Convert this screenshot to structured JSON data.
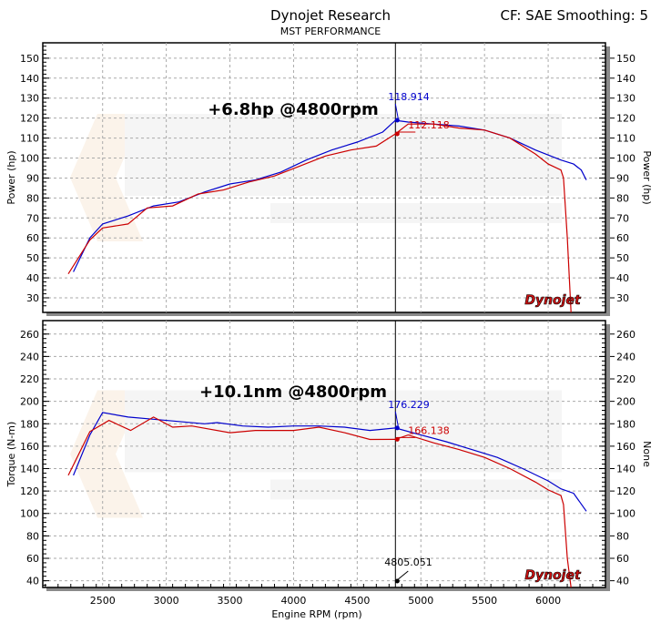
{
  "header": {
    "title": "Dynojet Research",
    "subtitle": "MST PERFORMANCE",
    "settings": "CF: SAE Smoothing: 5"
  },
  "watermark": "MST PERFORMANCE",
  "logo": "Dynojet",
  "colors": {
    "run1": "#0000cc",
    "run2": "#cc0000",
    "cursor": "#000000"
  },
  "chart_data": [
    {
      "type": "line",
      "ylabel": "Power (hp)",
      "ylabel_right": "Power (hp)",
      "xlim": [
        2030,
        6450
      ],
      "ylim": [
        22.7,
        157.7
      ],
      "yticks": [
        30,
        40,
        50,
        60,
        70,
        80,
        90,
        100,
        110,
        120,
        130,
        140,
        150
      ],
      "grid": true,
      "annotation": "+6.8hp @4800rpm",
      "cursor_rpm": 4800,
      "series": [
        {
          "color": "#0000cc",
          "cursor_label": "118.914",
          "cursor_value": 118.914,
          "x": [
            2270,
            2400,
            2500,
            2700,
            2900,
            3100,
            3300,
            3500,
            3700,
            3900,
            4100,
            4300,
            4500,
            4700,
            4800,
            4900,
            5100,
            5300,
            5500,
            5700,
            5900,
            6100,
            6200,
            6260,
            6300
          ],
          "y": [
            43,
            60,
            67,
            71,
            76,
            78,
            83,
            87,
            89,
            93,
            99,
            104,
            108,
            113,
            118.9,
            118,
            117,
            116,
            114,
            110,
            104,
            99,
            97,
            94,
            89
          ]
        },
        {
          "color": "#cc0000",
          "cursor_label": "112.118",
          "cursor_value": 112.118,
          "x": [
            2230,
            2400,
            2500,
            2700,
            2850,
            3050,
            3250,
            3450,
            3650,
            3850,
            4050,
            4250,
            4450,
            4650,
            4800,
            4900,
            5100,
            5300,
            5500,
            5700,
            5900,
            6000,
            6100,
            6120,
            6150,
            6180
          ],
          "y": [
            42,
            59,
            65,
            67,
            75,
            76,
            82,
            84,
            88,
            91,
            96,
            101,
            104,
            106,
            112.1,
            117,
            117,
            115,
            114,
            110,
            102,
            97,
            94,
            90,
            60,
            22.7
          ]
        }
      ]
    },
    {
      "type": "line",
      "xlabel": "Engine RPM (rpm)",
      "ylabel": "Torque (N-m)",
      "ylabel_right": "None",
      "xlim": [
        2030,
        6450
      ],
      "ylim": [
        34,
        272
      ],
      "xticks": [
        2500,
        3000,
        3500,
        4000,
        4500,
        5000,
        5500,
        6000
      ],
      "yticks": [
        40,
        60,
        80,
        100,
        120,
        140,
        160,
        180,
        200,
        220,
        240,
        260
      ],
      "grid": true,
      "annotation": "+10.1nm @4800rpm",
      "cursor_rpm": 4800,
      "cursor_x_label": "4805.051",
      "series": [
        {
          "color": "#0000cc",
          "cursor_label": "176.229",
          "cursor_value": 176.229,
          "x": [
            2270,
            2400,
            2500,
            2700,
            2900,
            3100,
            3300,
            3400,
            3600,
            3800,
            4000,
            4200,
            4400,
            4600,
            4800,
            5000,
            5200,
            5400,
            5600,
            5800,
            6000,
            6100,
            6200,
            6300
          ],
          "y": [
            134,
            170,
            190,
            186,
            184,
            182,
            180,
            181,
            178,
            177,
            178,
            178,
            177,
            174,
            176.2,
            170,
            164,
            157,
            150,
            140,
            129,
            122,
            118,
            102
          ]
        },
        {
          "color": "#cc0000",
          "cursor_label": "166.138",
          "cursor_value": 166.138,
          "x": [
            2230,
            2400,
            2550,
            2720,
            2900,
            3050,
            3200,
            3500,
            3700,
            4000,
            4200,
            4400,
            4600,
            4800,
            4900,
            5100,
            5300,
            5500,
            5700,
            5900,
            6000,
            6100,
            6120,
            6150,
            6180
          ],
          "y": [
            134,
            173,
            183,
            174,
            186,
            177,
            178,
            172,
            174,
            174,
            177,
            172,
            166,
            166.1,
            170,
            163,
            157,
            150,
            140,
            128,
            121,
            116,
            108,
            60,
            34
          ]
        }
      ]
    }
  ]
}
